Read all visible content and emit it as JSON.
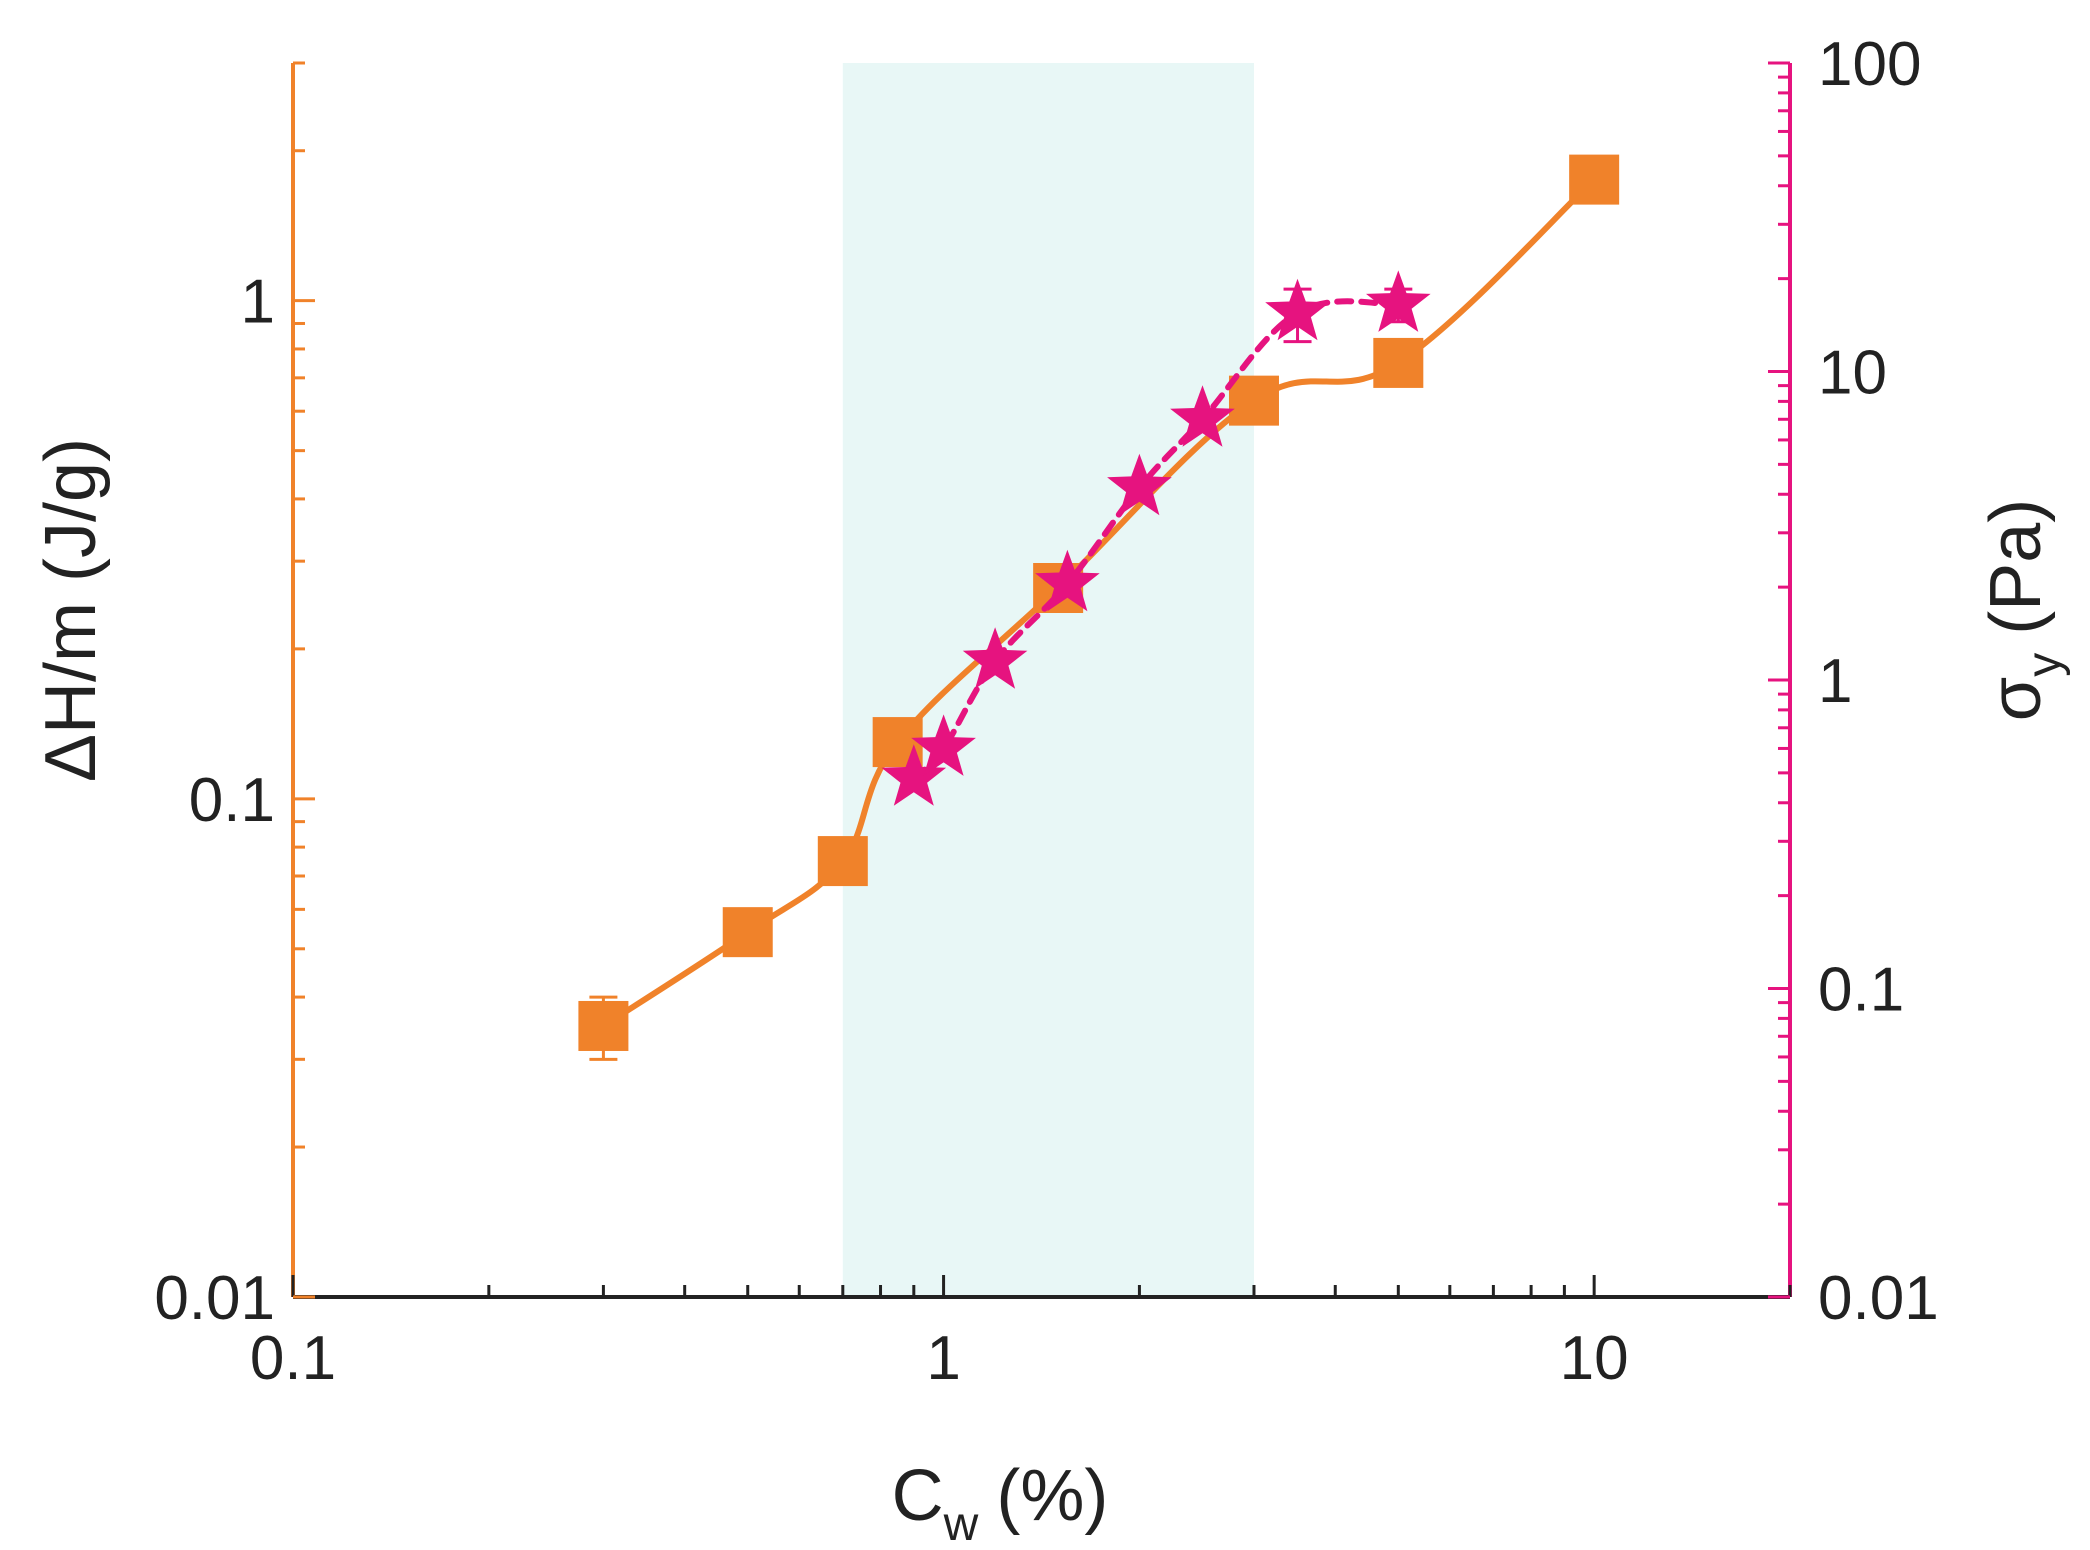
{
  "chart_data": {
    "type": "scatter",
    "x_axis": {
      "label_main": "C",
      "label_sub": "w",
      "label_unit": "(%)",
      "scale": "log",
      "range": [
        0.1,
        20
      ],
      "tick_values": [
        0.1,
        1,
        10
      ],
      "tick_labels": [
        "0.1",
        "1",
        "10"
      ]
    },
    "y_left_axis": {
      "label": "ΔH/m (J/g)",
      "scale": "log",
      "range": [
        0.01,
        3
      ],
      "tick_values": [
        0.01,
        0.1,
        1
      ],
      "tick_labels": [
        "0.01",
        "0.1",
        "1"
      ],
      "color": "#f0822a"
    },
    "y_right_axis": {
      "label_main": "σ",
      "label_sub": "y",
      "label_unit": "(Pa)",
      "scale": "log",
      "range": [
        0.01,
        100
      ],
      "tick_values": [
        0.01,
        0.1,
        1,
        10,
        100
      ],
      "tick_labels": [
        "0.01",
        "0.1",
        "1",
        "10",
        "100"
      ],
      "color": "#e6137f"
    },
    "shaded_region": {
      "x_from": 0.7,
      "x_to": 3,
      "color": "#e8f7f6"
    },
    "series": [
      {
        "name": "ΔH/m",
        "axis": "left",
        "marker": "square",
        "line": "solid",
        "color": "#f0822a",
        "points": [
          {
            "x": 0.3,
            "y": 0.035,
            "err": 0.005
          },
          {
            "x": 0.5,
            "y": 0.054
          },
          {
            "x": 0.7,
            "y": 0.075
          },
          {
            "x": 0.85,
            "y": 0.13
          },
          {
            "x": 1.5,
            "y": 0.265
          },
          {
            "x": 3.0,
            "y": 0.63
          },
          {
            "x": 5.0,
            "y": 0.75
          },
          {
            "x": 10.0,
            "y": 1.75
          }
        ]
      },
      {
        "name": "σy",
        "axis": "right",
        "marker": "star",
        "line": "dashed",
        "color": "#e6137f",
        "points": [
          {
            "x": 0.9,
            "y": 0.48
          },
          {
            "x": 1.0,
            "y": 0.6
          },
          {
            "x": 1.2,
            "y": 1.15
          },
          {
            "x": 1.55,
            "y": 2.05
          },
          {
            "x": 2.0,
            "y": 4.2
          },
          {
            "x": 2.5,
            "y": 7.0
          },
          {
            "x": 3.5,
            "y": 15.5,
            "err": 3.0
          },
          {
            "x": 5.0,
            "y": 16.5,
            "err": 2.0
          }
        ]
      }
    ]
  }
}
